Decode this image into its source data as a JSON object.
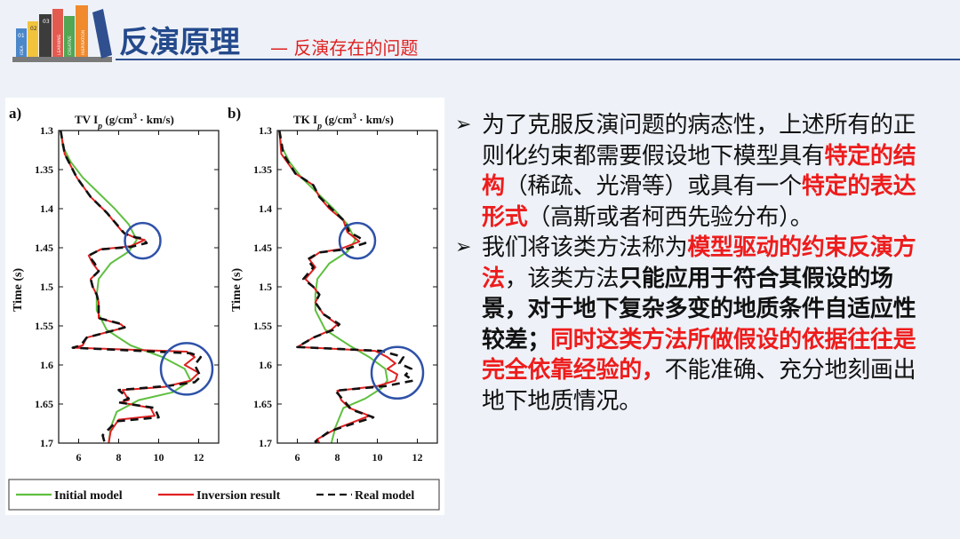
{
  "header": {
    "title": "反演原理",
    "subtitle": "— 反演存在的问题",
    "logo_book_labels": [
      "01",
      "02",
      "03",
      "IDEA",
      "LEARNING",
      "CREATIVE",
      "INSPIRATION"
    ]
  },
  "chart_data": [
    {
      "type": "line",
      "panel_label": "a)",
      "title": "TV I_p (g/cm^3 · km/s)",
      "ylabel": "Time (s)",
      "ylim": [
        1.3,
        1.7
      ],
      "xlim": [
        5,
        13
      ],
      "x_ticks": [
        "6",
        "8",
        "10",
        "12"
      ],
      "y_ticks": [
        "1.3",
        "1.35",
        "1.4",
        "1.45",
        "1.5",
        "1.55",
        "1.6",
        "1.65",
        "1.7"
      ],
      "series": [
        {
          "name": "Initial model",
          "color": "#5fbf3f",
          "dash": "solid",
          "points": [
            [
              5.1,
              1.3
            ],
            [
              5.2,
              1.32
            ],
            [
              5.6,
              1.34
            ],
            [
              6.2,
              1.36
            ],
            [
              7,
              1.38
            ],
            [
              7.8,
              1.4
            ],
            [
              8.5,
              1.42
            ],
            [
              8.9,
              1.44
            ],
            [
              8.5,
              1.455
            ],
            [
              7.6,
              1.47
            ],
            [
              7.0,
              1.49
            ],
            [
              6.9,
              1.51
            ],
            [
              6.9,
              1.53
            ],
            [
              7.4,
              1.555
            ],
            [
              8.6,
              1.575
            ],
            [
              10.2,
              1.59
            ],
            [
              11.3,
              1.605
            ],
            [
              11.6,
              1.62
            ],
            [
              10.7,
              1.635
            ],
            [
              9.0,
              1.645
            ],
            [
              7.9,
              1.66
            ],
            [
              7.6,
              1.68
            ],
            [
              7.5,
              1.7
            ]
          ]
        },
        {
          "name": "Inversion result",
          "color": "#e02020",
          "dash": "solid",
          "points": [
            [
              5.1,
              1.3
            ],
            [
              5.3,
              1.33
            ],
            [
              5.9,
              1.36
            ],
            [
              6.6,
              1.385
            ],
            [
              7.4,
              1.405
            ],
            [
              8.2,
              1.43
            ],
            [
              8.8,
              1.437
            ],
            [
              9.3,
              1.44
            ],
            [
              8.6,
              1.448
            ],
            [
              7.1,
              1.452
            ],
            [
              6.5,
              1.46
            ],
            [
              6.7,
              1.47
            ],
            [
              7.0,
              1.48
            ],
            [
              6.6,
              1.49
            ],
            [
              6.7,
              1.5
            ],
            [
              6.9,
              1.51
            ],
            [
              7.0,
              1.52
            ],
            [
              7.0,
              1.54
            ],
            [
              8.1,
              1.548
            ],
            [
              8.3,
              1.552
            ],
            [
              6.4,
              1.565
            ],
            [
              6.2,
              1.575
            ],
            [
              5.8,
              1.578
            ],
            [
              11.4,
              1.583
            ],
            [
              11.8,
              1.59
            ],
            [
              11.3,
              1.6
            ],
            [
              12.0,
              1.61
            ],
            [
              11.6,
              1.62
            ],
            [
              10.3,
              1.628
            ],
            [
              8.2,
              1.632
            ],
            [
              8.5,
              1.645
            ],
            [
              8.1,
              1.648
            ],
            [
              9.6,
              1.655
            ],
            [
              9.8,
              1.665
            ],
            [
              8.0,
              1.67
            ],
            [
              7.6,
              1.685
            ],
            [
              7.5,
              1.7
            ]
          ]
        },
        {
          "name": "Real model",
          "color": "#111111",
          "dash": "dashed",
          "points": [
            [
              5.1,
              1.3
            ],
            [
              5.3,
              1.33
            ],
            [
              5.9,
              1.36
            ],
            [
              6.6,
              1.385
            ],
            [
              7.4,
              1.405
            ],
            [
              8.3,
              1.432
            ],
            [
              8.9,
              1.437
            ],
            [
              9.2,
              1.438
            ],
            [
              9.4,
              1.444
            ],
            [
              8.6,
              1.449
            ],
            [
              7.1,
              1.452
            ],
            [
              6.5,
              1.46
            ],
            [
              6.8,
              1.47
            ],
            [
              7.0,
              1.48
            ],
            [
              6.6,
              1.49
            ],
            [
              6.7,
              1.5
            ],
            [
              6.9,
              1.51
            ],
            [
              7.0,
              1.52
            ],
            [
              7.0,
              1.54
            ],
            [
              8.2,
              1.548
            ],
            [
              8.3,
              1.552
            ],
            [
              6.4,
              1.565
            ],
            [
              6.1,
              1.575
            ],
            [
              5.7,
              1.578
            ],
            [
              11.6,
              1.585
            ],
            [
              12.1,
              1.59
            ],
            [
              11.8,
              1.6
            ],
            [
              12.1,
              1.615
            ],
            [
              11.8,
              1.622
            ],
            [
              10.4,
              1.627
            ],
            [
              8.0,
              1.632
            ],
            [
              8.5,
              1.643
            ],
            [
              8.0,
              1.648
            ],
            [
              9.8,
              1.655
            ],
            [
              10.0,
              1.667
            ],
            [
              7.9,
              1.672
            ],
            [
              7.2,
              1.69
            ],
            [
              7.3,
              1.7
            ]
          ]
        }
      ],
      "circles": [
        [
          9.2,
          1.441
        ],
        [
          11.4,
          1.605
        ]
      ]
    },
    {
      "type": "line",
      "panel_label": "b)",
      "title": "TK I_p (g/cm^3 · km/s)",
      "ylabel": "Time (s)",
      "ylim": [
        1.3,
        1.7
      ],
      "xlim": [
        5,
        13
      ],
      "x_ticks": [
        "6",
        "8",
        "10",
        "12"
      ],
      "y_ticks": [
        "1.3",
        "1.35",
        "1.4",
        "1.45",
        "1.5",
        "1.55",
        "1.6",
        "1.65",
        "1.7"
      ],
      "series": [
        {
          "name": "Initial model",
          "color": "#5fbf3f",
          "dash": "solid",
          "points": [
            [
              5.1,
              1.3
            ],
            [
              5.2,
              1.32
            ],
            [
              5.6,
              1.34
            ],
            [
              6.2,
              1.36
            ],
            [
              7,
              1.38
            ],
            [
              7.8,
              1.4
            ],
            [
              8.5,
              1.42
            ],
            [
              8.9,
              1.44
            ],
            [
              8.5,
              1.455
            ],
            [
              7.6,
              1.47
            ],
            [
              7.0,
              1.49
            ],
            [
              6.9,
              1.51
            ],
            [
              6.9,
              1.53
            ],
            [
              7.4,
              1.555
            ],
            [
              8.6,
              1.575
            ],
            [
              9.6,
              1.59
            ],
            [
              10.4,
              1.605
            ],
            [
              10.5,
              1.62
            ],
            [
              10.2,
              1.63
            ],
            [
              9.4,
              1.643
            ],
            [
              8.3,
              1.655
            ],
            [
              7.9,
              1.68
            ],
            [
              7.7,
              1.7
            ]
          ]
        },
        {
          "name": "Inversion result",
          "color": "#e02020",
          "dash": "solid",
          "points": [
            [
              5.1,
              1.3
            ],
            [
              5.2,
              1.33
            ],
            [
              5.9,
              1.355
            ],
            [
              6.8,
              1.37
            ],
            [
              7.1,
              1.385
            ],
            [
              7.6,
              1.4
            ],
            [
              8.3,
              1.415
            ],
            [
              8.5,
              1.43
            ],
            [
              8.9,
              1.438
            ],
            [
              9.1,
              1.442
            ],
            [
              8.1,
              1.452
            ],
            [
              7.1,
              1.456
            ],
            [
              6.6,
              1.465
            ],
            [
              6.9,
              1.475
            ],
            [
              6.4,
              1.49
            ],
            [
              6.8,
              1.5
            ],
            [
              7.1,
              1.51
            ],
            [
              6.9,
              1.52
            ],
            [
              7.3,
              1.535
            ],
            [
              8.0,
              1.548
            ],
            [
              7.7,
              1.555
            ],
            [
              6.8,
              1.565
            ],
            [
              6.0,
              1.577
            ],
            [
              9.9,
              1.582
            ],
            [
              10.5,
              1.59
            ],
            [
              10.9,
              1.598
            ],
            [
              10.5,
              1.605
            ],
            [
              11.0,
              1.612
            ],
            [
              10.9,
              1.62
            ],
            [
              10.0,
              1.627
            ],
            [
              8.0,
              1.633
            ],
            [
              8.2,
              1.645
            ],
            [
              8.6,
              1.655
            ],
            [
              9.6,
              1.665
            ],
            [
              8.9,
              1.672
            ],
            [
              7.9,
              1.682
            ],
            [
              7.0,
              1.695
            ],
            [
              7.1,
              1.7
            ]
          ]
        },
        {
          "name": "Real model",
          "color": "#111111",
          "dash": "dashed",
          "points": [
            [
              5.1,
              1.3
            ],
            [
              5.3,
              1.33
            ],
            [
              5.9,
              1.355
            ],
            [
              6.8,
              1.37
            ],
            [
              7.1,
              1.385
            ],
            [
              7.7,
              1.4
            ],
            [
              8.4,
              1.417
            ],
            [
              8.6,
              1.43
            ],
            [
              9.1,
              1.437
            ],
            [
              9.4,
              1.444
            ],
            [
              8.4,
              1.452
            ],
            [
              7.1,
              1.456
            ],
            [
              6.5,
              1.465
            ],
            [
              6.8,
              1.475
            ],
            [
              6.3,
              1.49
            ],
            [
              6.8,
              1.5
            ],
            [
              7.1,
              1.51
            ],
            [
              6.9,
              1.52
            ],
            [
              7.3,
              1.535
            ],
            [
              8.1,
              1.548
            ],
            [
              7.8,
              1.555
            ],
            [
              6.8,
              1.565
            ],
            [
              6.0,
              1.577
            ],
            [
              10.2,
              1.582
            ],
            [
              11.3,
              1.59
            ],
            [
              11.1,
              1.598
            ],
            [
              11.7,
              1.605
            ],
            [
              11.4,
              1.613
            ],
            [
              11.8,
              1.62
            ],
            [
              10.4,
              1.627
            ],
            [
              7.9,
              1.633
            ],
            [
              8.3,
              1.645
            ],
            [
              8.7,
              1.657
            ],
            [
              9.8,
              1.667
            ],
            [
              8.8,
              1.675
            ],
            [
              7.6,
              1.685
            ],
            [
              6.9,
              1.698
            ],
            [
              7.0,
              1.7
            ]
          ]
        }
      ],
      "circles": [
        [
          9.0,
          1.441
        ],
        [
          11.0,
          1.61
        ]
      ]
    }
  ],
  "legend": {
    "items": [
      {
        "label": "Initial model",
        "color": "#5fbf3f",
        "dash": "solid"
      },
      {
        "label": "Inversion result",
        "color": "#e02020",
        "dash": "solid"
      },
      {
        "label": "Real model",
        "color": "#111111",
        "dash": "dashed"
      }
    ]
  },
  "bullets": [
    [
      {
        "text": "为了克服反演问题的病态性，上述所有的正则化约束都需要假设地下模型具有",
        "style": "normal"
      },
      {
        "text": "特定的结构",
        "style": "red"
      },
      {
        "text": "（稀疏、光滑等）或具有一个",
        "style": "normal"
      },
      {
        "text": "特定的表达形式",
        "style": "red"
      },
      {
        "text": "（高斯或者柯西先验分布）。",
        "style": "normal"
      }
    ],
    [
      {
        "text": "我们将该类方法称为",
        "style": "normal"
      },
      {
        "text": "模型驱动的约束反演方法",
        "style": "red"
      },
      {
        "text": "，该类方法",
        "style": "normal"
      },
      {
        "text": "只能应用于符合其假设的场景，对于地下复杂多变的地质条件自适应性较差；",
        "style": "bold"
      },
      {
        "text": "同时这类方法所做假设的依据往往是完全依靠经验的，",
        "style": "red"
      },
      {
        "text": "不能准确、充分地刻画出地下地质情况。",
        "style": "normal"
      }
    ]
  ]
}
